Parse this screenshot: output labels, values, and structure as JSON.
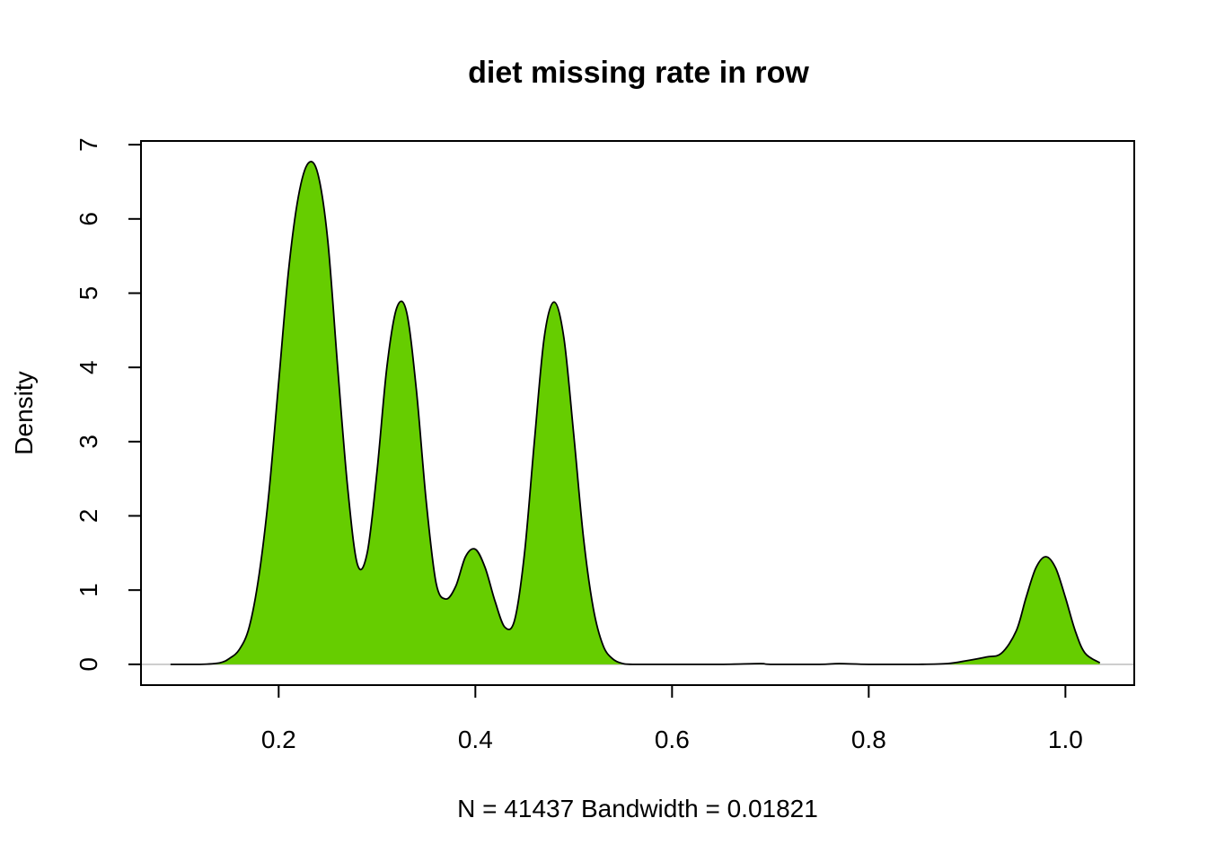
{
  "chart_data": {
    "type": "area",
    "title": "diet missing rate in row",
    "xlabel": "N = 41437   Bandwidth = 0.01821",
    "ylabel": "Density",
    "xlim": [
      0.06,
      1.07
    ],
    "ylim": [
      -0.28,
      7.05
    ],
    "x_ticks": [
      0.2,
      0.4,
      0.6,
      0.8,
      1.0
    ],
    "x_tick_labels": [
      "0.2",
      "0.4",
      "0.6",
      "0.8",
      "1.0"
    ],
    "y_ticks": [
      0,
      1,
      2,
      3,
      4,
      5,
      6,
      7
    ],
    "y_tick_labels": [
      "0",
      "1",
      "2",
      "3",
      "4",
      "5",
      "6",
      "7"
    ],
    "grid": false,
    "fill_color": "#66CD00",
    "line_color": "#000000",
    "baseline_color": "#BEBEBE",
    "series": [
      {
        "x": [
          0.09,
          0.12,
          0.14,
          0.15,
          0.16,
          0.17,
          0.18,
          0.19,
          0.2,
          0.21,
          0.22,
          0.23,
          0.24,
          0.25,
          0.26,
          0.27,
          0.28,
          0.29,
          0.3,
          0.31,
          0.32,
          0.33,
          0.34,
          0.35,
          0.36,
          0.37,
          0.38,
          0.39,
          0.4,
          0.41,
          0.42,
          0.43,
          0.44,
          0.45,
          0.46,
          0.47,
          0.48,
          0.49,
          0.5,
          0.51,
          0.52,
          0.53,
          0.54,
          0.55,
          0.56,
          0.6,
          0.65,
          0.69,
          0.7,
          0.75,
          0.77,
          0.8,
          0.85,
          0.88,
          0.9,
          0.92,
          0.935,
          0.95,
          0.96,
          0.97,
          0.98,
          0.99,
          1.0,
          1.01,
          1.02,
          1.035
        ],
        "y": [
          0.0,
          0.0,
          0.02,
          0.08,
          0.2,
          0.5,
          1.2,
          2.3,
          3.8,
          5.3,
          6.3,
          6.75,
          6.6,
          5.7,
          4.0,
          2.4,
          1.35,
          1.5,
          2.6,
          4.0,
          4.8,
          4.75,
          3.7,
          2.2,
          1.1,
          0.88,
          1.05,
          1.45,
          1.55,
          1.3,
          0.85,
          0.5,
          0.6,
          1.5,
          3.0,
          4.4,
          4.88,
          4.4,
          3.1,
          1.7,
          0.75,
          0.25,
          0.07,
          0.01,
          0.0,
          0.0,
          0.0,
          0.01,
          0.0,
          0.0,
          0.01,
          0.0,
          0.0,
          0.01,
          0.05,
          0.1,
          0.15,
          0.45,
          0.9,
          1.3,
          1.45,
          1.3,
          0.9,
          0.45,
          0.15,
          0.02
        ]
      }
    ]
  }
}
